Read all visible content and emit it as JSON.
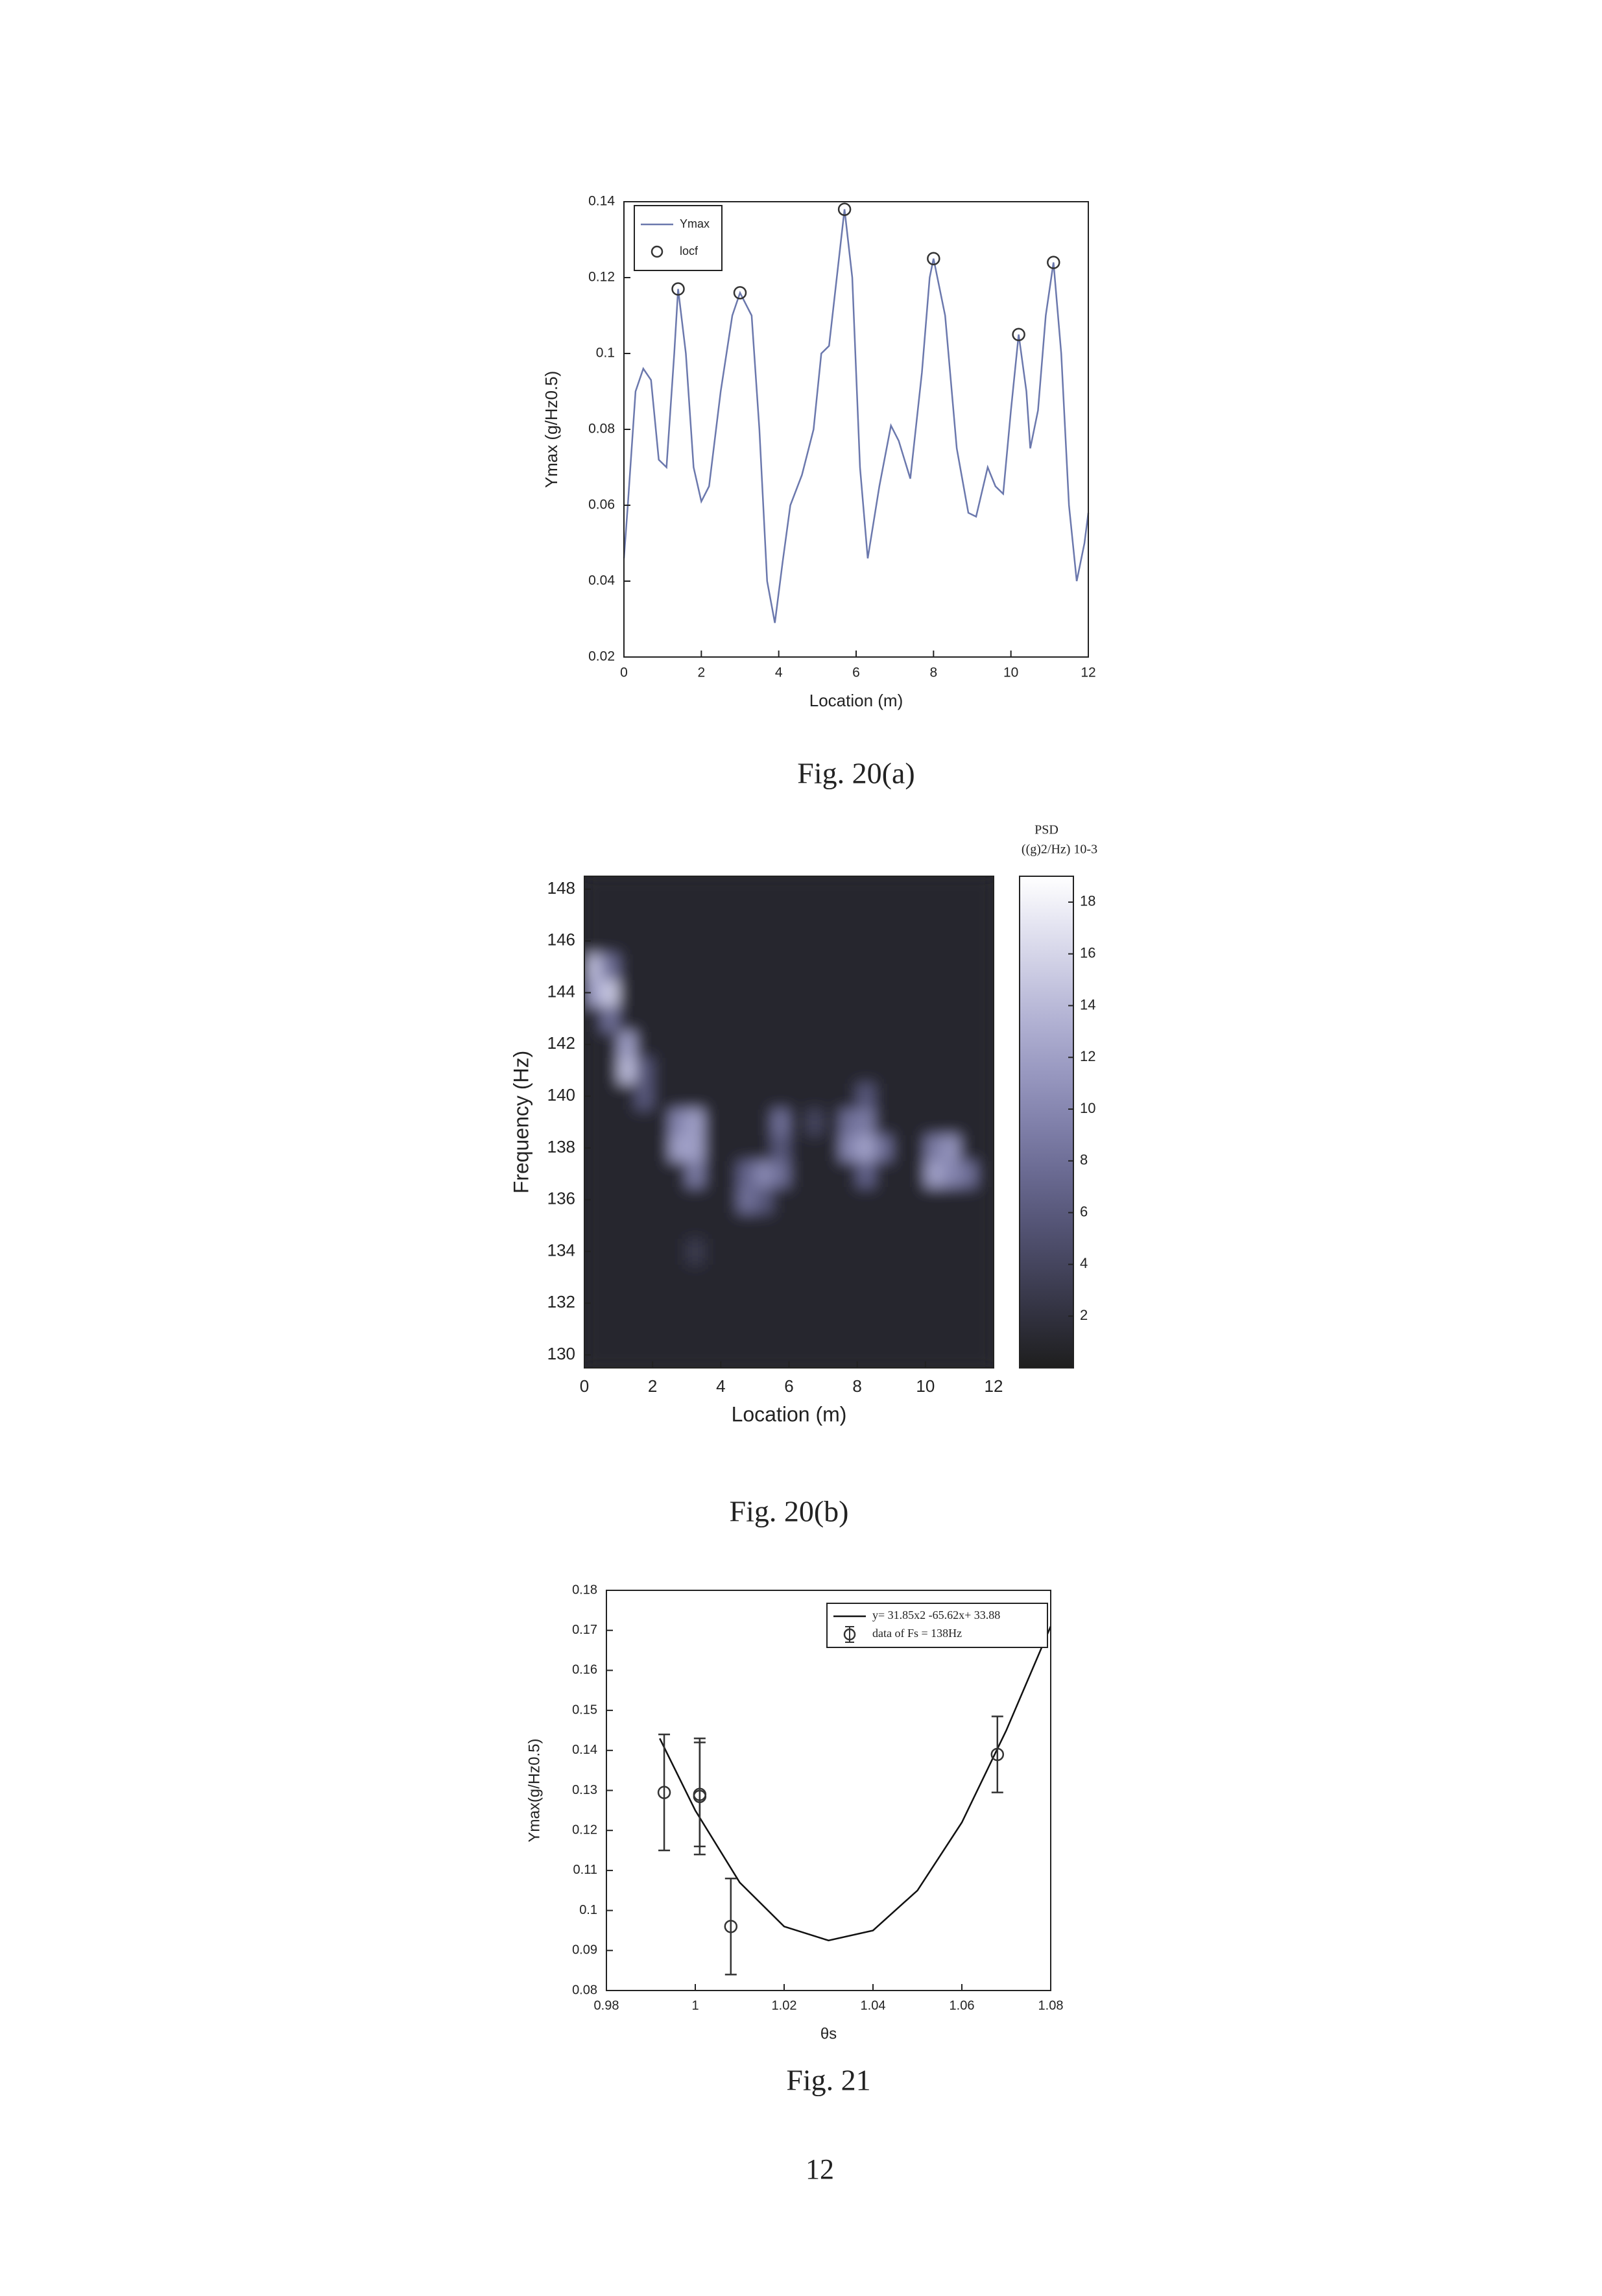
{
  "chart_data": [
    {
      "type": "line",
      "caption": "Fig. 20(a)",
      "xlabel": "Location (m)",
      "ylabel": "Ymax (g/Hz0.5)",
      "xlim": [
        0,
        12
      ],
      "ylim": [
        0.02,
        0.14
      ],
      "xticks": [
        0,
        2,
        4,
        6,
        8,
        10,
        12
      ],
      "yticks": [
        0.02,
        0.04,
        0.06,
        0.08,
        0.1,
        0.12,
        0.14
      ],
      "legend": "upper left",
      "series": [
        {
          "name": "Ymax",
          "style": "line",
          "color": "#6b78ad",
          "x": [
            0,
            0.1,
            0.3,
            0.5,
            0.7,
            0.9,
            1.1,
            1.3,
            1.4,
            1.6,
            1.8,
            2.0,
            2.2,
            2.5,
            2.8,
            3.0,
            3.3,
            3.5,
            3.7,
            3.9,
            4.1,
            4.3,
            4.6,
            4.9,
            5.1,
            5.3,
            5.5,
            5.7,
            5.9,
            6.1,
            6.3,
            6.6,
            6.9,
            7.1,
            7.4,
            7.7,
            7.9,
            8.0,
            8.3,
            8.6,
            8.9,
            9.1,
            9.4,
            9.6,
            9.8,
            10.0,
            10.2,
            10.4,
            10.5,
            10.7,
            10.9,
            11.1,
            11.3,
            11.5,
            11.7,
            11.9,
            12
          ],
          "values": [
            0.046,
            0.06,
            0.09,
            0.096,
            0.093,
            0.072,
            0.07,
            0.1,
            0.117,
            0.1,
            0.07,
            0.061,
            0.065,
            0.09,
            0.11,
            0.116,
            0.11,
            0.08,
            0.04,
            0.029,
            0.045,
            0.06,
            0.068,
            0.08,
            0.1,
            0.102,
            0.12,
            0.138,
            0.12,
            0.07,
            0.046,
            0.065,
            0.081,
            0.077,
            0.067,
            0.095,
            0.12,
            0.125,
            0.11,
            0.075,
            0.058,
            0.057,
            0.07,
            0.065,
            0.063,
            0.085,
            0.105,
            0.09,
            0.075,
            0.085,
            0.11,
            0.124,
            0.1,
            0.06,
            0.04,
            0.05,
            0.058
          ]
        },
        {
          "name": "locf",
          "style": "marker",
          "color": "#333333",
          "x": [
            1.4,
            3.0,
            5.7,
            8.0,
            10.2,
            11.1
          ],
          "values": [
            0.117,
            0.116,
            0.138,
            0.125,
            0.105,
            0.124
          ]
        }
      ]
    },
    {
      "type": "heatmap",
      "caption": "Fig. 20(b)",
      "xlabel": "Location (m)",
      "ylabel": "Frequency (Hz)",
      "xlim": [
        0,
        12
      ],
      "ylim": [
        129.5,
        148.5
      ],
      "xticks": [
        0,
        2,
        4,
        6,
        8,
        10,
        12
      ],
      "yticks": [
        130,
        132,
        134,
        136,
        138,
        140,
        142,
        144,
        146,
        148
      ],
      "x": [
        0.25,
        0.75,
        1.25,
        1.75,
        2.25,
        2.75,
        3.25,
        3.75,
        4.25,
        4.75,
        5.25,
        5.75,
        6.25,
        6.75,
        7.25,
        7.75,
        8.25,
        8.75,
        9.25,
        9.75,
        10.25,
        10.75,
        11.25,
        11.75
      ],
      "y": [
        130,
        131,
        132,
        133,
        134,
        135,
        136,
        137,
        138,
        139,
        140,
        141,
        142,
        143,
        144,
        145,
        146,
        147,
        148
      ],
      "z": [
        [
          1,
          1,
          1,
          1,
          1,
          1,
          1,
          1,
          1,
          1,
          1,
          1,
          1,
          1,
          1,
          1,
          1,
          1,
          1,
          1,
          1,
          1,
          1,
          1
        ],
        [
          1,
          1,
          1,
          1,
          1,
          1,
          1,
          1,
          1,
          1,
          1,
          1,
          1,
          1,
          1,
          1,
          1,
          1,
          1,
          1,
          1,
          1,
          1,
          1
        ],
        [
          1,
          1,
          1,
          1,
          1,
          1,
          1,
          1,
          1,
          1,
          1,
          1,
          1,
          1,
          1,
          1,
          1,
          1,
          1,
          1,
          1,
          1,
          1,
          1
        ],
        [
          1,
          1,
          1,
          1,
          1,
          1,
          1,
          1,
          1,
          1,
          1,
          1,
          1,
          1,
          1,
          1,
          1,
          1,
          1,
          1,
          1,
          1,
          1,
          1
        ],
        [
          1,
          1,
          1,
          1,
          1,
          1,
          3,
          1,
          1,
          1,
          1,
          1,
          1,
          1,
          1,
          1,
          1,
          1,
          1,
          1,
          1,
          1,
          1,
          1
        ],
        [
          1,
          1,
          1,
          1,
          1,
          1,
          1,
          1,
          1,
          1,
          1,
          1,
          1,
          1,
          1,
          1,
          1,
          1,
          1,
          1,
          1,
          1,
          1,
          1
        ],
        [
          1,
          1,
          1,
          1,
          1,
          1,
          1,
          1,
          1,
          8,
          6,
          1,
          1,
          1,
          1,
          1,
          1,
          1,
          1,
          1,
          1,
          1,
          1,
          1
        ],
        [
          1,
          1,
          1,
          1,
          1,
          1,
          9,
          1,
          1,
          7,
          10,
          8,
          1,
          1,
          1,
          1,
          7,
          1,
          1,
          1,
          12,
          10,
          8,
          1
        ],
        [
          1,
          1,
          1,
          1,
          1,
          12,
          12,
          1,
          1,
          1,
          1,
          6,
          1,
          1,
          1,
          10,
          12,
          8,
          1,
          1,
          9,
          11,
          1,
          1
        ],
        [
          1,
          1,
          1,
          1,
          1,
          10,
          12,
          1,
          1,
          1,
          1,
          8,
          1,
          4,
          1,
          8,
          9,
          1,
          1,
          1,
          1,
          1,
          1,
          1
        ],
        [
          1,
          1,
          1,
          6,
          1,
          1,
          1,
          1,
          1,
          1,
          1,
          1,
          1,
          1,
          1,
          1,
          6,
          1,
          1,
          1,
          1,
          1,
          1,
          1
        ],
        [
          1,
          1,
          14,
          6,
          1,
          1,
          1,
          1,
          1,
          1,
          1,
          1,
          1,
          1,
          1,
          1,
          1,
          1,
          1,
          1,
          1,
          1,
          1,
          1
        ],
        [
          1,
          1,
          12,
          1,
          1,
          1,
          1,
          1,
          1,
          1,
          1,
          1,
          1,
          1,
          1,
          1,
          1,
          1,
          1,
          1,
          1,
          1,
          1,
          1
        ],
        [
          1,
          8,
          1,
          1,
          1,
          1,
          1,
          1,
          1,
          1,
          1,
          1,
          1,
          1,
          1,
          1,
          1,
          1,
          1,
          1,
          1,
          1,
          1,
          1
        ],
        [
          12,
          15,
          1,
          1,
          1,
          1,
          1,
          1,
          1,
          1,
          1,
          1,
          1,
          1,
          1,
          1,
          1,
          1,
          1,
          1,
          1,
          1,
          1,
          1
        ],
        [
          14,
          8,
          1,
          1,
          1,
          1,
          1,
          1,
          1,
          1,
          1,
          1,
          1,
          1,
          1,
          1,
          1,
          1,
          1,
          1,
          1,
          1,
          1,
          1
        ],
        [
          1,
          1,
          1,
          1,
          1,
          1,
          1,
          1,
          1,
          1,
          1,
          1,
          1,
          1,
          1,
          1,
          1,
          1,
          1,
          1,
          1,
          1,
          1,
          1
        ],
        [
          1,
          1,
          1,
          1,
          1,
          1,
          1,
          1,
          1,
          1,
          1,
          1,
          1,
          1,
          1,
          1,
          1,
          1,
          1,
          1,
          1,
          1,
          1,
          1
        ],
        [
          1,
          1,
          1,
          1,
          1,
          1,
          1,
          1,
          1,
          1,
          1,
          1,
          1,
          1,
          1,
          1,
          1,
          1,
          1,
          1,
          1,
          1,
          1,
          1
        ]
      ],
      "colorbar": {
        "title": "PSD",
        "unit": "((g)2/Hz) 10-3",
        "lim": [
          0,
          19
        ],
        "ticks": [
          2,
          4,
          6,
          8,
          10,
          12,
          14,
          16,
          18
        ]
      }
    },
    {
      "type": "scatter",
      "caption": "Fig. 21",
      "xlabel": "θs",
      "ylabel": "Ymax(g/Hz0.5)",
      "xlim": [
        0.98,
        1.08
      ],
      "ylim": [
        0.08,
        0.18
      ],
      "xticks": [
        0.98,
        1,
        1.02,
        1.04,
        1.06,
        1.08
      ],
      "yticks": [
        0.08,
        0.09,
        0.1,
        0.11,
        0.12,
        0.13,
        0.14,
        0.15,
        0.16,
        0.17,
        0.18
      ],
      "legend": "upper right",
      "series": [
        {
          "name": "y= 31.85x2 -65.62x+ 33.88",
          "style": "line",
          "color": "#111111",
          "x": [
            0.992,
            1.0,
            1.01,
            1.02,
            1.03,
            1.04,
            1.05,
            1.06,
            1.07,
            1.08
          ],
          "values": [
            0.143,
            0.125,
            0.107,
            0.096,
            0.0925,
            0.095,
            0.105,
            0.122,
            0.145,
            0.171
          ]
        },
        {
          "name": "data of Fs = 138Hz",
          "style": "marker",
          "color": "#333333",
          "x": [
            0.993,
            1.001,
            1.001,
            1.008,
            1.068
          ],
          "values": [
            0.1295,
            0.1285,
            0.129,
            0.096,
            0.139
          ],
          "errors": [
            0.0145,
            0.0145,
            0.013,
            0.012,
            0.0095
          ]
        }
      ]
    }
  ],
  "page_number": "12"
}
